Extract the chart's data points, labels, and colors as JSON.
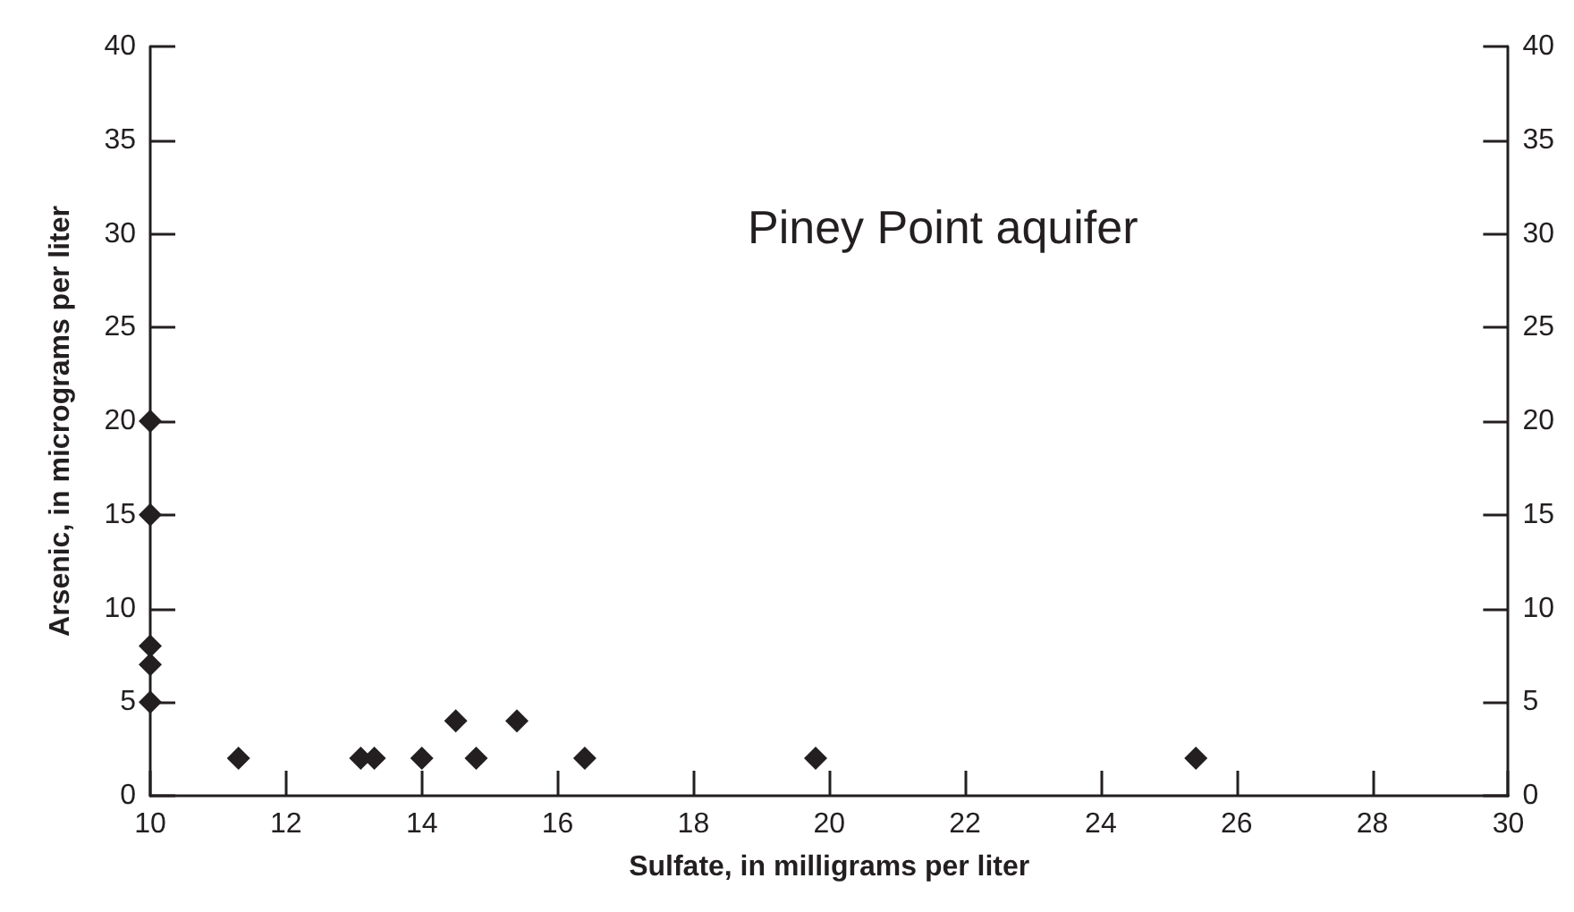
{
  "chart_data": {
    "type": "scatter",
    "xlabel": "Sulfate, in milligrams per liter",
    "ylabel": "Arsenic, in micrograms per liter",
    "annotations": [
      "Piney Point aquifer"
    ],
    "x": [
      10,
      10,
      10,
      10,
      10,
      11.3,
      13.1,
      13.3,
      14.0,
      14.5,
      14.8,
      15.4,
      16.4,
      19.8,
      25.4
    ],
    "series": [
      {
        "color": "#231f20",
        "values": [
          20,
          15,
          8,
          7,
          5,
          2,
          2,
          2,
          2,
          4,
          2,
          4,
          2,
          2,
          2
        ]
      }
    ],
    "marker": "diamond",
    "xlim": [
      10,
      30
    ],
    "xticks": [
      10,
      12,
      14,
      16,
      18,
      20,
      22,
      24,
      26,
      28,
      30
    ],
    "ylim": [
      0,
      40
    ],
    "yticks": [
      0,
      5,
      10,
      15,
      20,
      25,
      30,
      35,
      40
    ],
    "y2lim": [
      0,
      40
    ],
    "y2ticks": [
      0,
      5,
      10,
      15,
      20,
      25,
      30,
      35,
      40
    ],
    "grid": false
  }
}
